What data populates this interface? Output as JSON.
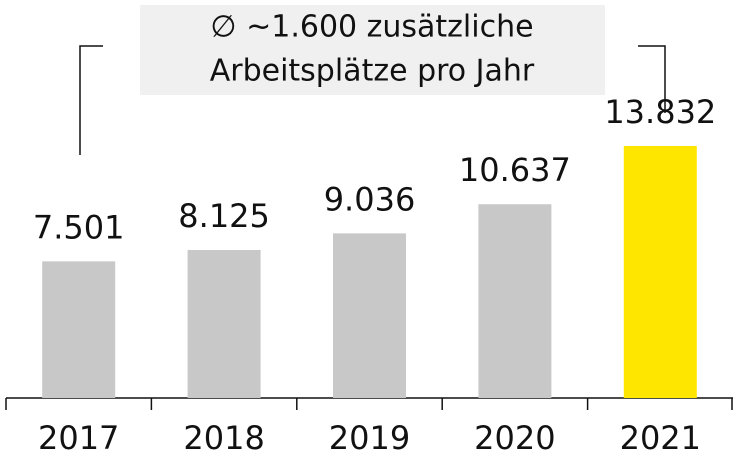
{
  "chart_data": {
    "type": "bar",
    "annotation": [
      "∅  ~1.600 zusätzliche",
      "Arbeitsplätze pro Jahr"
    ],
    "categories": [
      "2017",
      "2018",
      "2019",
      "2020",
      "2021"
    ],
    "values": [
      7501,
      8125,
      9036,
      10637,
      13832
    ],
    "value_labels": [
      "7.501",
      "8.125",
      "9.036",
      "10.637",
      "13.832"
    ],
    "colors": [
      "#c8c8c8",
      "#c8c8c8",
      "#c8c8c8",
      "#c8c8c8",
      "#ffe600"
    ]
  }
}
